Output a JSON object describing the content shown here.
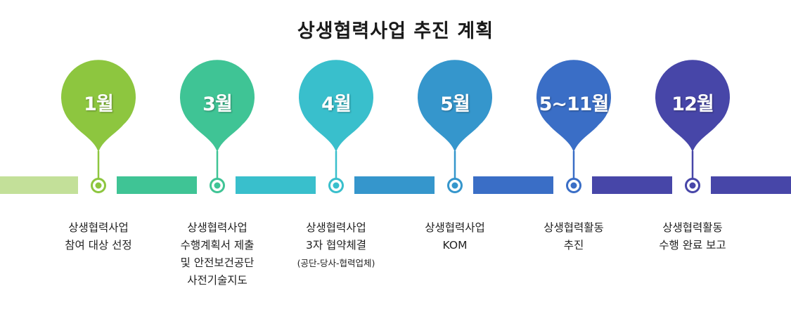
{
  "title": "상생협력사업 추진 계획",
  "stages": [
    {
      "label": "1월",
      "color": "#8dc63f",
      "light": "#c3e099",
      "lines": [
        "상생협력사업",
        "참여 대상 선정"
      ],
      "note": ""
    },
    {
      "label": "3월",
      "color": "#3fc495",
      "light": "#3fc495",
      "lines": [
        "상생협력사업",
        "수행계획서 제출",
        "및 안전보건공단",
        "사전기술지도"
      ],
      "note": ""
    },
    {
      "label": "4월",
      "color": "#39bfcc",
      "light": "#39bfcc",
      "lines": [
        "상생협력사업",
        "3자 협약체결"
      ],
      "note": "(공단-당사-협력업체)"
    },
    {
      "label": "5월",
      "color": "#3596cc",
      "light": "#3596cc",
      "lines": [
        "상생협력사업",
        "KOM"
      ],
      "note": ""
    },
    {
      "label": "5~11월",
      "color": "#3a6ec6",
      "light": "#3a6ec6",
      "lines": [
        "상생협력활동",
        "추진"
      ],
      "note": ""
    },
    {
      "label": "12월",
      "color": "#4746a8",
      "light": "#4746a8",
      "lines": [
        "상생협력활동",
        "수행 완료 보고"
      ],
      "note": ""
    }
  ]
}
